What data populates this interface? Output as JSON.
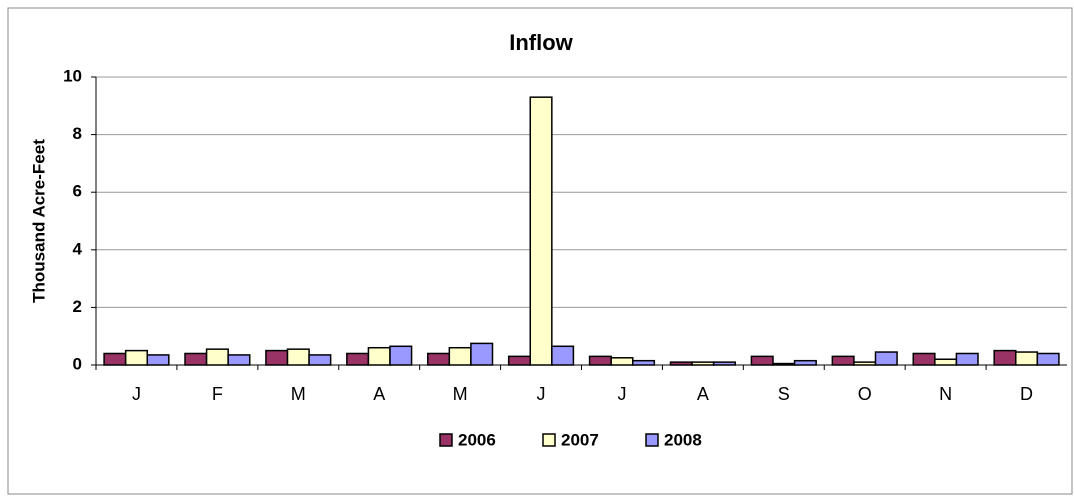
{
  "chart_data": {
    "type": "bar",
    "title": "Inflow",
    "y_label": "Thousand Acre-Feet",
    "categories": [
      "J",
      "F",
      "M",
      "A",
      "M",
      "J",
      "J",
      "A",
      "S",
      "O",
      "N",
      "D"
    ],
    "series": [
      {
        "name": "2006",
        "color": "#993366",
        "values": [
          0.4,
          0.4,
          0.5,
          0.4,
          0.4,
          0.3,
          0.3,
          0.1,
          0.3,
          0.3,
          0.4,
          0.5
        ]
      },
      {
        "name": "2007",
        "color": "#ffffcc",
        "values": [
          0.5,
          0.55,
          0.55,
          0.6,
          0.6,
          9.3,
          0.25,
          0.1,
          0.05,
          0.1,
          0.2,
          0.45
        ]
      },
      {
        "name": "2008",
        "color": "#9999ff",
        "values": [
          0.35,
          0.35,
          0.35,
          0.65,
          0.75,
          0.65,
          0.15,
          0.1,
          0.15,
          0.45,
          0.4,
          0.4
        ]
      }
    ],
    "ylim": [
      0,
      10
    ],
    "yticks": [
      0,
      2,
      4,
      6,
      8,
      10
    ],
    "grid": true
  }
}
